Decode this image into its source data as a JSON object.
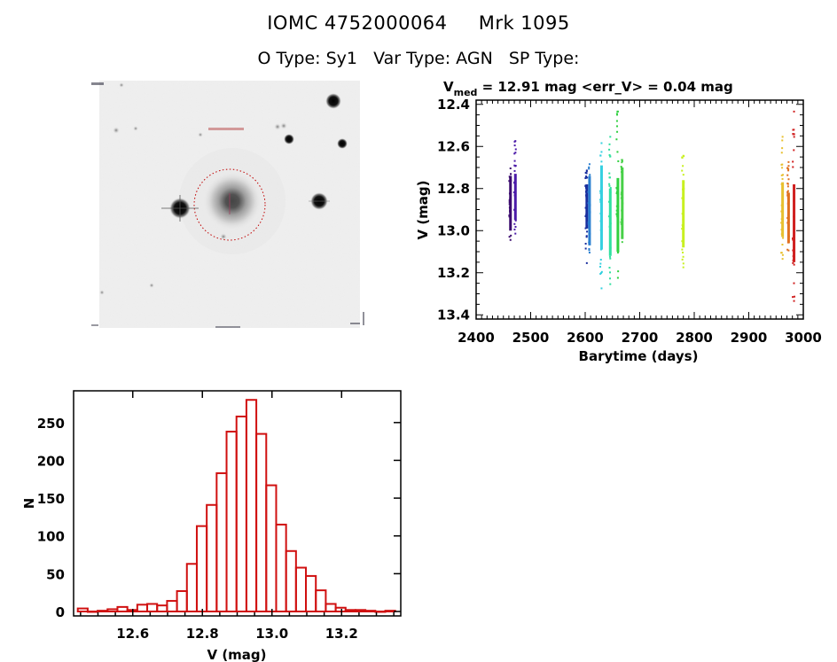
{
  "header": {
    "id_label": "IOMC 4752000064",
    "name": "Mrk 1095",
    "otype": "O Type: Sy1",
    "vartype": "Var Type: AGN",
    "sptype": "SP Type:"
  },
  "image_panel": {
    "description_icon": "sky-image"
  },
  "colors": {
    "hist_bar": "#d01010",
    "circle": "#c00000",
    "axis": "#000000"
  },
  "chart_data": [
    {
      "type": "scatter",
      "title_main": "V",
      "title_sub": "med",
      "title_rest": " = 12.91 mag <err_V> = 0.04 mag",
      "xlabel": "Barytime (days)",
      "ylabel": "V (mag)",
      "xlim": [
        2400,
        3000
      ],
      "ylim": [
        13.42,
        12.38
      ],
      "xticks": [
        "2400",
        "2500",
        "2600",
        "2700",
        "2800",
        "2900",
        "3000"
      ],
      "xtick_values": [
        2400,
        2500,
        2600,
        2700,
        2800,
        2900,
        3000
      ],
      "yticks": [
        "12.4",
        "12.6",
        "12.8",
        "13.0",
        "13.2",
        "13.4"
      ],
      "ytick_values": [
        12.4,
        12.6,
        12.8,
        13.0,
        13.2,
        13.4
      ],
      "series": [
        {
          "name": "s1",
          "color": "#3a0a6e",
          "x": 2463,
          "core": [
            12.74,
            13.0
          ],
          "range": [
            12.7,
            13.04
          ]
        },
        {
          "name": "s2",
          "color": "#4b1aa8",
          "x": 2472,
          "core": [
            12.73,
            12.95
          ],
          "range": [
            12.57,
            13.01
          ]
        },
        {
          "name": "s3",
          "color": "#1a2e9e",
          "x": 2603,
          "core": [
            12.78,
            12.99
          ],
          "range": [
            12.71,
            13.15
          ]
        },
        {
          "name": "s4",
          "color": "#2a7fd0",
          "x": 2608,
          "core": [
            12.74,
            13.07
          ],
          "range": [
            12.68,
            13.1
          ]
        },
        {
          "name": "s5",
          "color": "#35d0e0",
          "x": 2630,
          "core": [
            12.69,
            13.09
          ],
          "range": [
            12.58,
            13.27
          ]
        },
        {
          "name": "s6",
          "color": "#30e0a0",
          "x": 2646,
          "core": [
            12.8,
            13.12
          ],
          "range": [
            12.55,
            13.25
          ]
        },
        {
          "name": "s7",
          "color": "#30d040",
          "x": 2660,
          "core": [
            12.75,
            13.1
          ],
          "range": [
            12.43,
            13.22
          ]
        },
        {
          "name": "s8",
          "color": "#48d048",
          "x": 2668,
          "core": [
            12.7,
            13.04
          ],
          "range": [
            12.66,
            13.05
          ]
        },
        {
          "name": "s9",
          "color": "#c8f020",
          "x": 2780,
          "core": [
            12.76,
            13.08
          ],
          "range": [
            12.64,
            13.17
          ]
        },
        {
          "name": "s10",
          "color": "#e8c030",
          "x": 2962,
          "core": [
            12.77,
            13.03
          ],
          "range": [
            12.55,
            13.13
          ]
        },
        {
          "name": "s11",
          "color": "#e07020",
          "x": 2973,
          "core": [
            12.82,
            13.06
          ],
          "range": [
            12.67,
            13.09
          ]
        },
        {
          "name": "s12",
          "color": "#d02020",
          "x": 2983,
          "core": [
            12.78,
            13.15
          ],
          "range": [
            12.43,
            13.33
          ]
        }
      ]
    },
    {
      "type": "bar",
      "title": "",
      "xlabel": "V (mag)",
      "ylabel": "N",
      "xlim": [
        12.43,
        13.37
      ],
      "ylim": [
        0,
        292
      ],
      "xticks": [
        "12.6",
        "12.8",
        "13.0",
        "13.2"
      ],
      "xtick_values": [
        12.6,
        12.8,
        13.0,
        13.2
      ],
      "yticks": [
        "0",
        "50",
        "100",
        "150",
        "200",
        "250"
      ],
      "ytick_values": [
        0,
        50,
        100,
        150,
        200,
        250
      ],
      "bin_start": 12.43,
      "bin_width": 0.0285,
      "values": [
        4,
        0,
        1,
        3,
        6,
        2,
        9,
        10,
        8,
        14,
        27,
        63,
        113,
        141,
        183,
        238,
        258,
        280,
        235,
        167,
        115,
        80,
        58,
        47,
        28,
        10,
        5,
        2,
        2,
        1,
        0,
        1
      ]
    }
  ]
}
